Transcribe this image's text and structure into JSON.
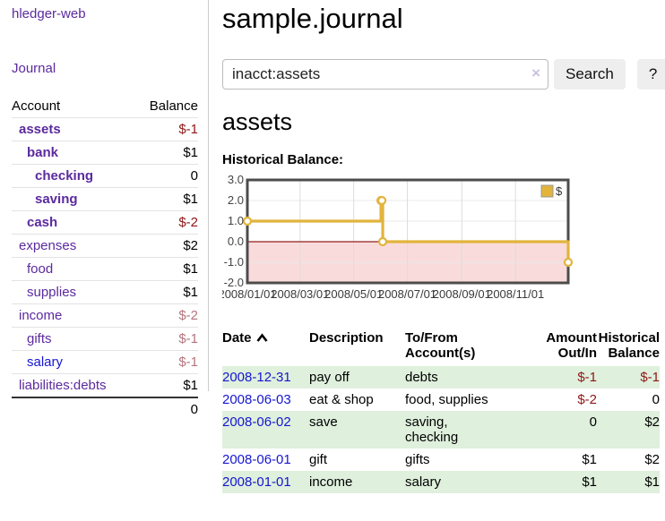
{
  "brand": "hledger-web",
  "sidebar": {
    "nav": {
      "journal": "Journal"
    },
    "accounts": {
      "header": {
        "account": "Account",
        "balance": "Balance"
      },
      "rows": [
        {
          "name": "assets",
          "balance": "$-1"
        },
        {
          "name": "bank",
          "balance": "$1"
        },
        {
          "name": "checking",
          "balance": "0"
        },
        {
          "name": "saving",
          "balance": "$1"
        },
        {
          "name": "cash",
          "balance": "$-2"
        },
        {
          "name": "expenses",
          "balance": "$2"
        },
        {
          "name": "food",
          "balance": "$1"
        },
        {
          "name": "supplies",
          "balance": "$1"
        },
        {
          "name": "income",
          "balance": "$-2"
        },
        {
          "name": "gifts",
          "balance": "$-1"
        },
        {
          "name": "salary",
          "balance": "$-1"
        },
        {
          "name": "liabilities:debts",
          "balance": "$1"
        }
      ],
      "total": "0"
    }
  },
  "header": {
    "title": "sample.journal"
  },
  "search": {
    "value": "inacct:assets",
    "clear": "×",
    "submit_label": "Search",
    "help_label": "?"
  },
  "account_view": {
    "title": "assets",
    "chart_heading": "Historical Balance:"
  },
  "chart_data": {
    "type": "line",
    "step": true,
    "title": "Historical Balance:",
    "ylabel": "",
    "xlabel": "",
    "ylim": [
      -2,
      3
    ],
    "ytick_labels": [
      "3.0",
      "2.0",
      "1.0",
      "0.0",
      "-1.0",
      "-2.0"
    ],
    "ytick_values": [
      3,
      2,
      1,
      0,
      -1,
      -2
    ],
    "xtick_labels": [
      "2008/01/01",
      "2008/03/01",
      "2008/05/01",
      "2008/07/01",
      "2008/09/01",
      "2008/11/01"
    ],
    "xtick_days": [
      0,
      60,
      121,
      182,
      244,
      305
    ],
    "x_domain_days": [
      0,
      365
    ],
    "legend": {
      "position": "top-right",
      "entries": [
        "$"
      ]
    },
    "series": [
      {
        "name": "$",
        "color": "#e2b43c",
        "points": [
          {
            "date": "2008-01-01",
            "day": 0,
            "value": 1
          },
          {
            "date": "2008-06-01",
            "day": 152,
            "value": 2
          },
          {
            "date": "2008-06-02",
            "day": 153,
            "value": 2
          },
          {
            "date": "2008-06-03",
            "day": 154,
            "value": 0
          },
          {
            "date": "2008-12-31",
            "day": 365,
            "value": -1
          }
        ]
      }
    ],
    "grid": true,
    "zero_line_color": "#8f1d1d",
    "negative_fill": "#fadbdb",
    "border_color": "#4c4c4c",
    "gridline_color": "#dddddd"
  },
  "register": {
    "header": {
      "date": "Date",
      "description": "Description",
      "accounts_line1": "To/From",
      "accounts_line2": "Account(s)",
      "amount_line1": "Amount",
      "amount_line2": "Out/In",
      "balance_line1": "Historical",
      "balance_line2": "Balance"
    },
    "rows": [
      {
        "date": "2008-12-31",
        "description": "pay off",
        "accounts": [
          "debts"
        ],
        "amount": "$-1",
        "balance": "$-1"
      },
      {
        "date": "2008-06-03",
        "description": "eat & shop",
        "accounts": [
          "food, supplies"
        ],
        "amount": "$-2",
        "balance": "0"
      },
      {
        "date": "2008-06-02",
        "description": "save",
        "accounts": [
          "saving,",
          "checking"
        ],
        "amount": "0",
        "balance": "$2"
      },
      {
        "date": "2008-06-01",
        "description": "gift",
        "accounts": [
          "gifts"
        ],
        "amount": "$1",
        "balance": "$2"
      },
      {
        "date": "2008-01-01",
        "description": "income",
        "accounts": [
          "salary"
        ],
        "amount": "$1",
        "balance": "$1"
      }
    ]
  },
  "colors": {
    "link_purple": "#5b2a9e",
    "link_blue": "#1616d1",
    "negative": "#8e1717",
    "negative_soft": "#b4757d",
    "row_green": "#dff0dd",
    "series_gold": "#e2b43c"
  }
}
